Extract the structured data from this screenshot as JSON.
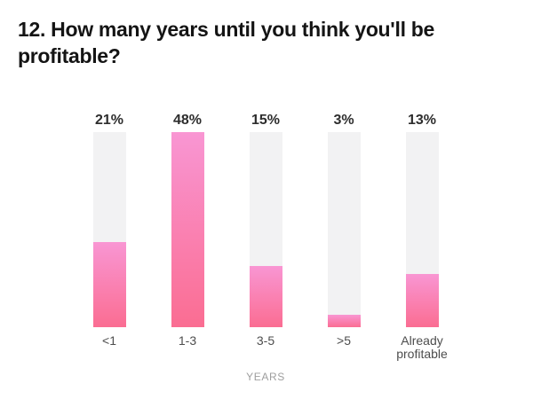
{
  "title": {
    "line1": "12. How many years until you think you'll be",
    "line2": "profitable?"
  },
  "chart_data": {
    "type": "bar",
    "title": "12. How many years until you think you'll be profitable?",
    "categories": [
      "<1",
      "1-3",
      "3-5",
      ">5",
      "Already profitable"
    ],
    "values": [
      21,
      48,
      15,
      3,
      13
    ],
    "value_labels": [
      "21%",
      "48%",
      "15%",
      "3%",
      "13%"
    ],
    "unit": "percent",
    "xlabel": "YEARS",
    "ylim": [
      0,
      48
    ],
    "layout_hints": {
      "orientation": "vertical",
      "grid": "off",
      "legend": "none",
      "value_labels_position": "above bars",
      "bar_scaling": "tallest bar (48%) fills full track height; fills drawn over light gray full-height tracks"
    },
    "colors": {
      "background": "#ffffff",
      "track": "#f2f2f3",
      "fill_gradient_top": "#f996d3",
      "fill_gradient_bottom": "#fa6d92",
      "title_text": "#141414",
      "value_label_text": "#2d2d2d",
      "category_label_text": "#4d4d4d",
      "axis_label_text": "#9e9e9e"
    }
  }
}
